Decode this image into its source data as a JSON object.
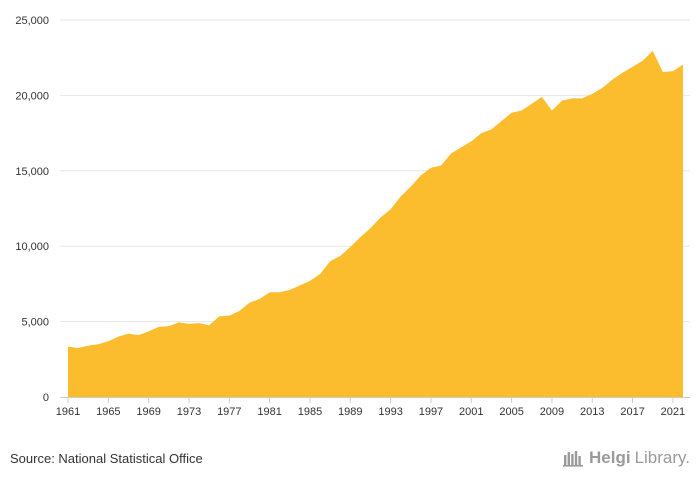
{
  "chart_data": {
    "type": "area",
    "color": "#fbbd2e",
    "grid": true,
    "ylim": [
      0,
      25000
    ],
    "yticks": [
      "0",
      "5,000",
      "10,000",
      "15,000",
      "20,000",
      "25,000"
    ],
    "ytick_values": [
      0,
      5000,
      10000,
      15000,
      20000,
      25000
    ],
    "xlim": [
      1961,
      2022
    ],
    "xticks": [
      "1961",
      "1965",
      "1969",
      "1973",
      "1977",
      "1981",
      "1985",
      "1989",
      "1993",
      "1997",
      "2001",
      "2005",
      "2009",
      "2013",
      "2017",
      "2021"
    ],
    "xtick_values": [
      1961,
      1965,
      1969,
      1973,
      1977,
      1981,
      1985,
      1989,
      1993,
      1997,
      2001,
      2005,
      2009,
      2013,
      2017,
      2021
    ],
    "x": [
      1961,
      1962,
      1963,
      1964,
      1965,
      1966,
      1967,
      1968,
      1969,
      1970,
      1971,
      1972,
      1973,
      1974,
      1975,
      1976,
      1977,
      1978,
      1979,
      1980,
      1981,
      1982,
      1983,
      1984,
      1985,
      1986,
      1987,
      1988,
      1989,
      1990,
      1991,
      1992,
      1993,
      1994,
      1995,
      1996,
      1997,
      1998,
      1999,
      2000,
      2001,
      2002,
      2003,
      2004,
      2005,
      2006,
      2007,
      2008,
      2009,
      2010,
      2011,
      2012,
      2013,
      2014,
      2015,
      2016,
      2017,
      2018,
      2019,
      2020,
      2021,
      2022
    ],
    "values": [
      3350,
      3250,
      3400,
      3500,
      3700,
      4000,
      4200,
      4100,
      4350,
      4650,
      4700,
      4950,
      4850,
      4900,
      4750,
      5350,
      5400,
      5700,
      6250,
      6500,
      6950,
      6950,
      7100,
      7400,
      7700,
      8150,
      9000,
      9350,
      9950,
      10600,
      11200,
      11900,
      12450,
      13300,
      13950,
      14700,
      15200,
      15350,
      16150,
      16550,
      16950,
      17500,
      17750,
      18300,
      18850,
      19000,
      19450,
      19900,
      19000,
      19650,
      19800,
      19800,
      20100,
      20500,
      21050,
      21500,
      21900,
      22300,
      22950,
      21550,
      21600,
      22050
    ]
  },
  "footer": {
    "source": "Source: National Statistical Office",
    "brand_helgi": "Helgi",
    "brand_library": "Library."
  },
  "icons": {
    "brand": "library-books-icon"
  }
}
